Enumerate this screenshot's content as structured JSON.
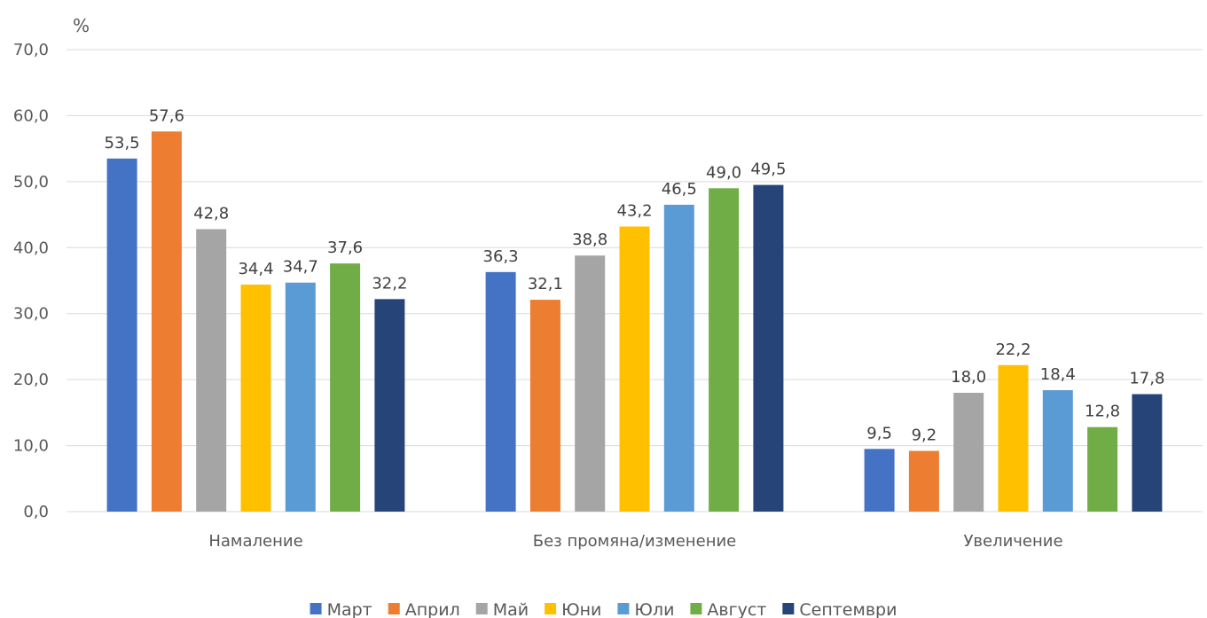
{
  "chart_data": {
    "type": "bar",
    "ylabel": "%",
    "ylim": [
      0,
      70
    ],
    "ytick_step": 10,
    "ytick_labels": [
      "0,0",
      "10,0",
      "20,0",
      "30,0",
      "40,0",
      "50,0",
      "60,0",
      "70,0"
    ],
    "grid": true,
    "legend_position": "bottom",
    "categories": [
      "Намаление",
      "Без промяна/изменение",
      "Увеличение"
    ],
    "series": [
      {
        "name": "Март",
        "color": "#4472c4",
        "values": [
          53.5,
          36.3,
          9.5
        ],
        "labels": [
          "53,5",
          "36,3",
          "9,5"
        ]
      },
      {
        "name": "Април",
        "color": "#ed7d31",
        "values": [
          57.6,
          32.1,
          9.2
        ],
        "labels": [
          "57,6",
          "32,1",
          "9,2"
        ]
      },
      {
        "name": "Май",
        "color": "#a5a5a5",
        "values": [
          42.8,
          38.8,
          18.0
        ],
        "labels": [
          "42,8",
          "38,8",
          "18,0"
        ]
      },
      {
        "name": "Юни",
        "color": "#ffc000",
        "values": [
          34.4,
          43.2,
          22.2
        ],
        "labels": [
          "34,4",
          "43,2",
          "22,2"
        ]
      },
      {
        "name": "Юли",
        "color": "#5b9bd5",
        "values": [
          34.7,
          46.5,
          18.4
        ],
        "labels": [
          "34,7",
          "46,5",
          "18,4"
        ]
      },
      {
        "name": "Август",
        "color": "#70ad47",
        "values": [
          37.6,
          49.0,
          12.8
        ],
        "labels": [
          "37,6",
          "49,0",
          "12,8"
        ]
      },
      {
        "name": "Септември",
        "color": "#264478",
        "values": [
          32.2,
          49.5,
          17.8
        ],
        "labels": [
          "32,2",
          "49,5",
          "17,8"
        ]
      }
    ]
  }
}
